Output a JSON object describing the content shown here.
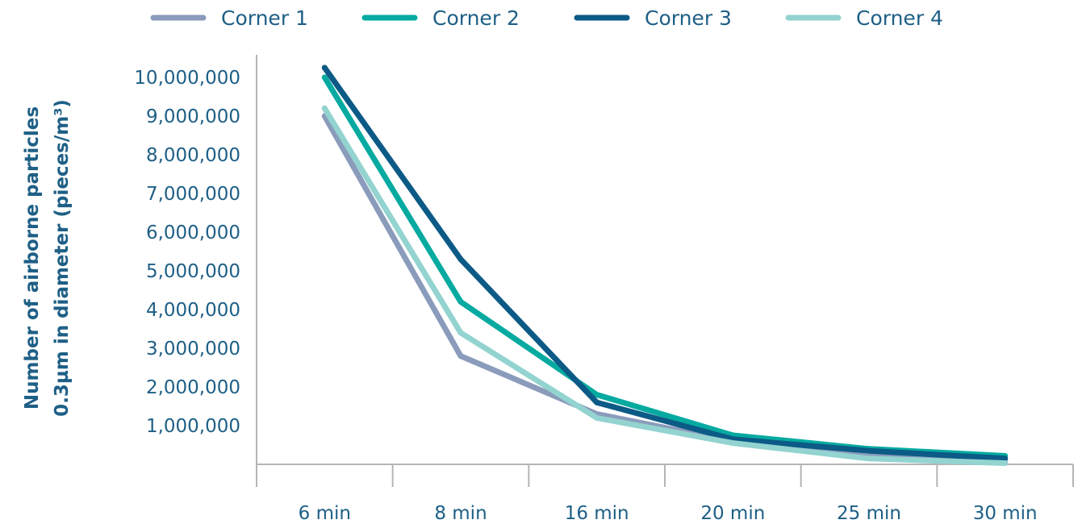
{
  "chart_data": {
    "type": "line",
    "categories": [
      "6 min",
      "8 min",
      "16 min",
      "20 min",
      "25 min",
      "30 min"
    ],
    "series": [
      {
        "name": "Corner 1",
        "color": "#8a9bbb",
        "values": [
          9000000,
          2800000,
          1300000,
          600000,
          200000,
          50000
        ]
      },
      {
        "name": "Corner 2",
        "color": "#06aaa0",
        "values": [
          10000000,
          4200000,
          1800000,
          750000,
          400000,
          220000
        ]
      },
      {
        "name": "Corner 3",
        "color": "#0c5a86",
        "values": [
          10250000,
          5300000,
          1600000,
          650000,
          350000,
          150000
        ]
      },
      {
        "name": "Corner 4",
        "color": "#93d3d0",
        "values": [
          9200000,
          3400000,
          1200000,
          550000,
          150000,
          30000
        ]
      }
    ],
    "yticks": [
      "1,000,000",
      "2,000,000",
      "3,000,000",
      "4,000,000",
      "5,000,000",
      "6,000,000",
      "7,000,000",
      "8,000,000",
      "9,000,000",
      "10,000,000"
    ],
    "ylabel_line1": "Number of airborne particles",
    "ylabel_line2": "0.3µm in diameter (pieces/m³)",
    "xlabel": "",
    "ylim": [
      0,
      10000000
    ],
    "legend_position": "top",
    "grid": false,
    "axis_color": "#b5b5b5"
  }
}
